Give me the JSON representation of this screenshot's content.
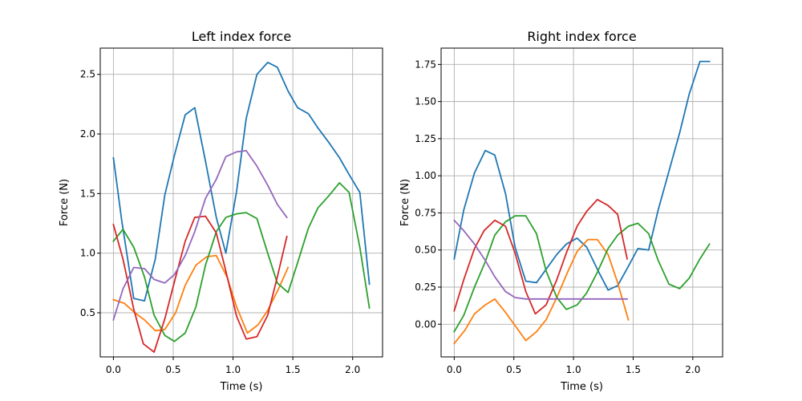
{
  "chart_data": [
    {
      "type": "line",
      "title": "Left index force",
      "xlabel": "Time (s)",
      "ylabel": "Force (N)",
      "xlim": [
        -0.11,
        2.25
      ],
      "ylim": [
        0.13,
        2.72
      ],
      "xticks": [
        0.0,
        0.5,
        1.0,
        1.5,
        2.0
      ],
      "xtick_labels": [
        "0.0",
        "0.5",
        "1.0",
        "1.5",
        "2.0"
      ],
      "yticks": [
        0.5,
        1.0,
        1.5,
        2.0,
        2.5
      ],
      "ytick_labels": [
        "0.5",
        "1.0",
        "1.5",
        "2.0",
        "2.5"
      ],
      "grid": true,
      "series": [
        {
          "color": "#1f77b4",
          "x": [
            0.0,
            0.07,
            0.17,
            0.26,
            0.35,
            0.43,
            0.51,
            0.6,
            0.68,
            0.77,
            0.86,
            0.94,
            1.03,
            1.11,
            1.2,
            1.29,
            1.37,
            1.46,
            1.54,
            1.63,
            1.71,
            1.8,
            1.89,
            1.97,
            2.06,
            2.14
          ],
          "y": [
            1.8,
            1.27,
            0.62,
            0.6,
            0.95,
            1.49,
            1.82,
            2.16,
            2.22,
            1.77,
            1.3,
            1.0,
            1.52,
            2.13,
            2.5,
            2.6,
            2.56,
            2.36,
            2.22,
            2.17,
            2.05,
            1.93,
            1.8,
            1.66,
            1.51,
            0.74
          ]
        },
        {
          "color": "#ff7f0e",
          "x": [
            0.0,
            0.09,
            0.18,
            0.26,
            0.35,
            0.43,
            0.52,
            0.6,
            0.69,
            0.78,
            0.86,
            0.95,
            1.03,
            1.12,
            1.21,
            1.29,
            1.38,
            1.46
          ],
          "y": [
            0.61,
            0.58,
            0.5,
            0.44,
            0.35,
            0.36,
            0.5,
            0.73,
            0.9,
            0.97,
            0.98,
            0.8,
            0.55,
            0.33,
            0.4,
            0.52,
            0.7,
            0.88
          ]
        },
        {
          "color": "#2ca02c",
          "x": [
            0.0,
            0.08,
            0.17,
            0.26,
            0.34,
            0.43,
            0.51,
            0.6,
            0.69,
            0.77,
            0.86,
            0.94,
            1.03,
            1.11,
            1.2,
            1.29,
            1.37,
            1.46,
            1.54,
            1.63,
            1.71,
            1.8,
            1.89,
            1.97,
            2.06,
            2.14
          ],
          "y": [
            1.1,
            1.2,
            1.05,
            0.8,
            0.48,
            0.31,
            0.26,
            0.33,
            0.55,
            0.9,
            1.18,
            1.3,
            1.33,
            1.34,
            1.29,
            1.0,
            0.75,
            0.67,
            0.92,
            1.21,
            1.38,
            1.48,
            1.59,
            1.51,
            1.05,
            0.54
          ]
        },
        {
          "color": "#d62728",
          "x": [
            0.0,
            0.08,
            0.17,
            0.25,
            0.34,
            0.43,
            0.51,
            0.6,
            0.68,
            0.77,
            0.86,
            0.94,
            1.03,
            1.11,
            1.2,
            1.29,
            1.37,
            1.45
          ],
          "y": [
            1.24,
            0.95,
            0.53,
            0.24,
            0.17,
            0.45,
            0.76,
            1.1,
            1.3,
            1.31,
            1.17,
            0.85,
            0.47,
            0.28,
            0.3,
            0.48,
            0.8,
            1.14
          ]
        },
        {
          "color": "#9467bd",
          "x": [
            0.0,
            0.08,
            0.17,
            0.26,
            0.34,
            0.43,
            0.51,
            0.6,
            0.68,
            0.77,
            0.86,
            0.94,
            1.03,
            1.11,
            1.2,
            1.29,
            1.37,
            1.45
          ],
          "y": [
            0.44,
            0.7,
            0.88,
            0.87,
            0.78,
            0.75,
            0.82,
            0.98,
            1.18,
            1.46,
            1.62,
            1.81,
            1.85,
            1.86,
            1.73,
            1.57,
            1.41,
            1.3
          ]
        }
      ]
    },
    {
      "type": "line",
      "title": "Right index force",
      "xlabel": "Time (s)",
      "ylabel": "Force (N)",
      "xlim": [
        -0.11,
        2.25
      ],
      "ylim": [
        -0.22,
        1.86
      ],
      "xticks": [
        0.0,
        0.5,
        1.0,
        1.5,
        2.0
      ],
      "xtick_labels": [
        "0.0",
        "0.5",
        "1.0",
        "1.5",
        "2.0"
      ],
      "yticks": [
        0.0,
        0.25,
        0.5,
        0.75,
        1.0,
        1.25,
        1.5,
        1.75
      ],
      "ytick_labels": [
        "0.00",
        "0.25",
        "0.50",
        "0.75",
        "1.00",
        "1.25",
        "1.50",
        "1.75"
      ],
      "grid": true,
      "series": [
        {
          "color": "#1f77b4",
          "x": [
            0.0,
            0.08,
            0.17,
            0.26,
            0.34,
            0.43,
            0.51,
            0.6,
            0.69,
            0.77,
            0.86,
            0.94,
            1.03,
            1.11,
            1.2,
            1.29,
            1.37,
            1.46,
            1.54,
            1.63,
            1.71,
            1.8,
            1.89,
            1.97,
            2.06,
            2.14
          ],
          "y": [
            0.44,
            0.77,
            1.02,
            1.17,
            1.14,
            0.88,
            0.52,
            0.29,
            0.28,
            0.37,
            0.47,
            0.54,
            0.58,
            0.52,
            0.37,
            0.23,
            0.26,
            0.39,
            0.51,
            0.5,
            0.77,
            1.03,
            1.29,
            1.55,
            1.77,
            1.77
          ]
        },
        {
          "color": "#ff7f0e",
          "x": [
            0.0,
            0.09,
            0.17,
            0.26,
            0.34,
            0.43,
            0.52,
            0.6,
            0.69,
            0.77,
            0.86,
            0.95,
            1.03,
            1.12,
            1.2,
            1.29,
            1.37,
            1.46
          ],
          "y": [
            -0.13,
            -0.04,
            0.07,
            0.13,
            0.17,
            0.08,
            -0.02,
            -0.11,
            -0.05,
            0.03,
            0.18,
            0.35,
            0.49,
            0.57,
            0.57,
            0.47,
            0.28,
            0.03
          ]
        },
        {
          "color": "#2ca02c",
          "x": [
            0.0,
            0.08,
            0.17,
            0.26,
            0.34,
            0.43,
            0.51,
            0.6,
            0.69,
            0.77,
            0.86,
            0.94,
            1.03,
            1.11,
            1.2,
            1.29,
            1.37,
            1.46,
            1.54,
            1.63,
            1.71,
            1.8,
            1.89,
            1.97,
            2.06,
            2.14
          ],
          "y": [
            -0.05,
            0.06,
            0.25,
            0.42,
            0.6,
            0.69,
            0.73,
            0.73,
            0.61,
            0.36,
            0.18,
            0.1,
            0.13,
            0.21,
            0.35,
            0.51,
            0.6,
            0.66,
            0.68,
            0.61,
            0.43,
            0.27,
            0.24,
            0.31,
            0.44,
            0.54
          ]
        },
        {
          "color": "#d62728",
          "x": [
            0.0,
            0.08,
            0.17,
            0.25,
            0.34,
            0.43,
            0.51,
            0.6,
            0.68,
            0.77,
            0.86,
            0.94,
            1.03,
            1.11,
            1.2,
            1.29,
            1.37,
            1.45
          ],
          "y": [
            0.09,
            0.3,
            0.51,
            0.63,
            0.7,
            0.66,
            0.48,
            0.22,
            0.07,
            0.13,
            0.3,
            0.48,
            0.66,
            0.76,
            0.84,
            0.8,
            0.74,
            0.44
          ]
        },
        {
          "color": "#9467bd",
          "x": [
            0.0,
            0.08,
            0.17,
            0.26,
            0.34,
            0.43,
            0.51,
            0.6,
            0.68,
            0.77,
            0.86,
            0.94,
            1.03,
            1.11,
            1.2,
            1.29,
            1.37,
            1.45
          ],
          "y": [
            0.7,
            0.63,
            0.54,
            0.43,
            0.32,
            0.22,
            0.18,
            0.17,
            0.17,
            0.17,
            0.17,
            0.17,
            0.17,
            0.17,
            0.17,
            0.17,
            0.17,
            0.17
          ]
        }
      ]
    }
  ]
}
